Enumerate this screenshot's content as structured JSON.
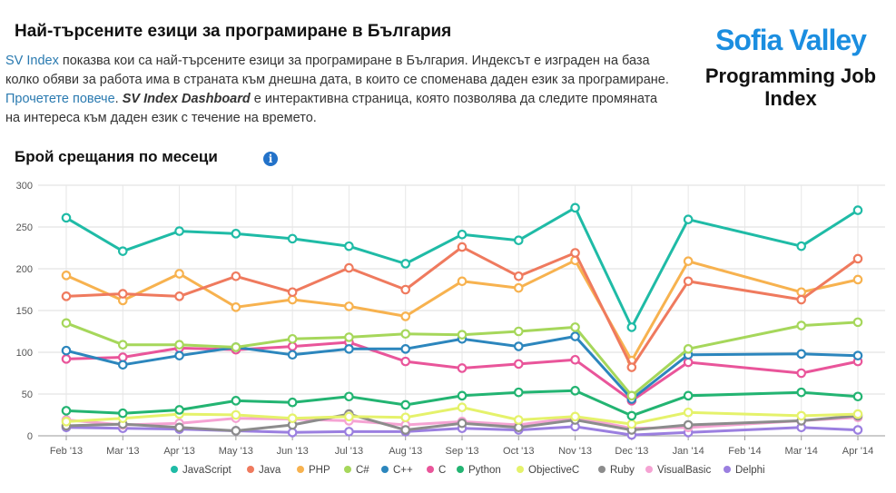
{
  "header": {
    "title": "Най-търсените езици за програмиране в България",
    "intro_link1": "SV Index",
    "intro_text1": " показва кои са най-търсените езици за програмиране в България. Индексът е изграден на база колко обяви за работа има в страната към днешна дата, в които се споменава даден език за програмиране. ",
    "intro_link2": "Прочетете повече",
    "intro_text2": ". ",
    "intro_bold": "SV Index Dashboard",
    "intro_text3": " е интерактивна страница, която позволява да следите промяната на интереса към даден език с течение на времето."
  },
  "logo": {
    "brand": "Sofia Valley",
    "subtitle": "Programming Job Index"
  },
  "chart_title": "Брой срещания по месеци",
  "info_icon": "i",
  "chart_data": {
    "type": "line",
    "categories": [
      "Feb '13",
      "Mar '13",
      "Apr '13",
      "May '13",
      "Jun '13",
      "Jul '13",
      "Aug '13",
      "Sep '13",
      "Oct '13",
      "Nov '13",
      "Dec '13",
      "Jan '14",
      "Feb '14",
      "Mar '14",
      "Apr '14"
    ],
    "yticks": [
      0,
      50,
      100,
      150,
      200,
      250,
      300
    ],
    "ylim": [
      0,
      300
    ],
    "grid": true,
    "legend_position": "bottom",
    "series": [
      {
        "name": "JavaScript",
        "color": "#1fbba6",
        "values": [
          261,
          221,
          245,
          242,
          236,
          227,
          206,
          241,
          234,
          273,
          130,
          259,
          null,
          227,
          270
        ]
      },
      {
        "name": "Java",
        "color": "#ef7a5e",
        "values": [
          167,
          170,
          167,
          191,
          172,
          201,
          175,
          226,
          191,
          219,
          82,
          185,
          null,
          163,
          212
        ]
      },
      {
        "name": "PHP",
        "color": "#f7b24f",
        "values": [
          192,
          162,
          194,
          154,
          163,
          155,
          143,
          185,
          177,
          210,
          90,
          209,
          null,
          172,
          187
        ]
      },
      {
        "name": "C#",
        "color": "#a6d75b",
        "values": [
          135,
          109,
          109,
          106,
          116,
          118,
          122,
          121,
          125,
          130,
          48,
          104,
          null,
          132,
          136
        ]
      },
      {
        "name": "C++",
        "color": "#2c86bd",
        "values": [
          102,
          85,
          96,
          106,
          97,
          104,
          104,
          116,
          107,
          119,
          44,
          97,
          null,
          98,
          96
        ]
      },
      {
        "name": "C",
        "color": "#e9559a",
        "values": [
          92,
          94,
          105,
          103,
          107,
          112,
          89,
          81,
          86,
          91,
          42,
          88,
          null,
          75,
          89
        ]
      },
      {
        "name": "Python",
        "color": "#23b472",
        "values": [
          30,
          27,
          31,
          42,
          40,
          47,
          37,
          48,
          52,
          54,
          24,
          48,
          null,
          52,
          47
        ]
      },
      {
        "name": "ObjectiveC",
        "color": "#e5f26b",
        "values": [
          17,
          21,
          26,
          25,
          21,
          23,
          22,
          34,
          19,
          23,
          14,
          28,
          null,
          24,
          26
        ]
      },
      {
        "name": "Ruby",
        "color": "#8c8c8c",
        "values": [
          12,
          14,
          10,
          6,
          13,
          26,
          7,
          15,
          10,
          19,
          7,
          13,
          null,
          18,
          24
        ]
      },
      {
        "name": "VisualBasic",
        "color": "#f5a3d3",
        "values": [
          19,
          13,
          15,
          21,
          20,
          18,
          13,
          17,
          13,
          22,
          9,
          10,
          null,
          18,
          22
        ]
      },
      {
        "name": "Delphi",
        "color": "#9b7fe0",
        "values": [
          10,
          9,
          8,
          6,
          4,
          5,
          5,
          9,
          7,
          11,
          1,
          4,
          null,
          10,
          7
        ]
      }
    ]
  }
}
